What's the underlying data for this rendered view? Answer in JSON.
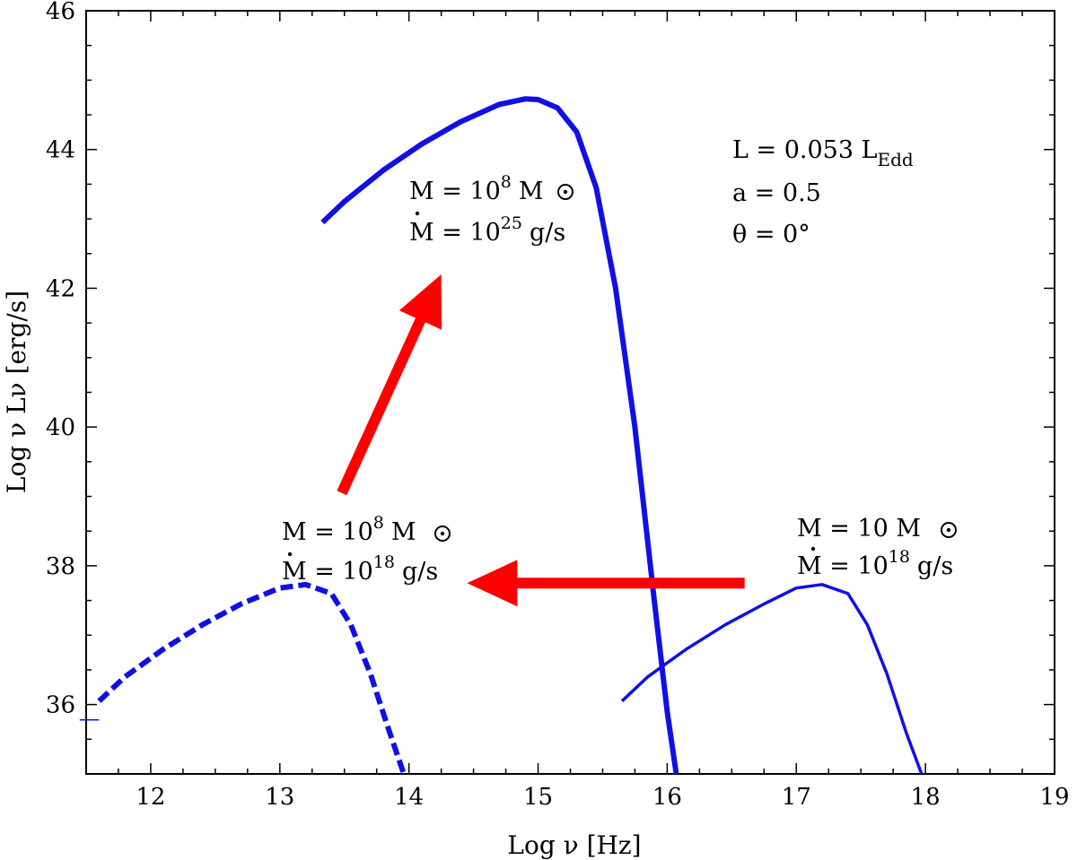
{
  "chart_data": {
    "type": "line",
    "xlabel": "Log ν  [Hz]",
    "ylabel": "Log ν Lν  [erg/s]",
    "xlim": [
      11.5,
      19
    ],
    "ylim": [
      35,
      46
    ],
    "xticks": [
      "12",
      "13",
      "14",
      "15",
      "16",
      "17",
      "18",
      "19"
    ],
    "yticks": [
      "36",
      "38",
      "40",
      "42",
      "44",
      "46"
    ],
    "series": [
      {
        "color": "#1010e6",
        "style": "solid-thick",
        "x": [
          13.33,
          13.5,
          13.8,
          14.1,
          14.4,
          14.7,
          14.9,
          15.0,
          15.15,
          15.3,
          15.45,
          15.6,
          15.75,
          15.9,
          16.0,
          16.07
        ],
        "y": [
          42.95,
          43.25,
          43.7,
          44.08,
          44.4,
          44.65,
          44.73,
          44.72,
          44.6,
          44.25,
          43.45,
          42.0,
          40.0,
          37.5,
          35.9,
          35.0
        ]
      },
      {
        "color": "#1010e6",
        "style": "dashed-thick",
        "x": [
          11.6,
          11.8,
          12.1,
          12.4,
          12.7,
          13.0,
          13.2,
          13.4,
          13.55,
          13.7,
          13.85,
          13.96
        ],
        "y": [
          36.05,
          36.4,
          36.8,
          37.15,
          37.45,
          37.68,
          37.73,
          37.6,
          37.15,
          36.45,
          35.6,
          35.0
        ]
      },
      {
        "color": "#1010e6",
        "style": "solid-thin",
        "x": [
          15.65,
          15.85,
          16.15,
          16.45,
          16.75,
          17.0,
          17.2,
          17.4,
          17.55,
          17.7,
          17.85,
          17.97
        ],
        "y": [
          36.05,
          36.4,
          36.8,
          37.15,
          37.45,
          37.68,
          37.73,
          37.6,
          37.15,
          36.45,
          35.6,
          35.0
        ]
      },
      {
        "color": "#1010e6",
        "style": "tick",
        "x": [
          11.45,
          11.6
        ],
        "y": [
          35.78,
          35.78
        ]
      }
    ],
    "arrows": [
      {
        "color": "#ff0000",
        "from": [
          13.48,
          39.05
        ],
        "to": [
          14.25,
          42.2
        ]
      },
      {
        "color": "#ff0000",
        "from": [
          16.6,
          37.75
        ],
        "to": [
          14.45,
          37.75
        ]
      }
    ]
  },
  "annotations": {
    "params": {
      "l_line": "L = 0.053 L",
      "l_sub": "Edd",
      "a_line": "a = 0.5",
      "theta_line": "θ = 0°"
    },
    "big_agn": {
      "m_prefix": "M = 10",
      "m_exp": "8",
      "m_unit": "M",
      "mdot_prefix": "M = 10",
      "mdot_exp": "25",
      "mdot_unit": "g/s"
    },
    "agn_low": {
      "m_prefix": "M = 10",
      "m_exp": "8",
      "m_unit": "M",
      "mdot_prefix": "M = 10",
      "mdot_exp": "18",
      "mdot_unit": "g/s"
    },
    "xrb": {
      "m_prefix": "M = 10 M",
      "mdot_prefix": "M = 10",
      "mdot_exp": "18",
      "mdot_unit": "g/s"
    }
  }
}
